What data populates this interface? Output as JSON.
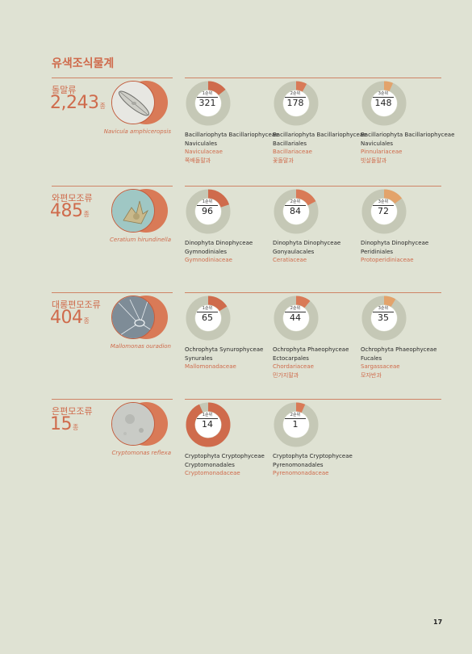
{
  "page_title": "유색조식물계",
  "page_number": "17",
  "colors": {
    "accent": "#cf6b4c",
    "donut_track": "#c5c8b6",
    "rank_fill": [
      "#cf6b4c",
      "#d97a57",
      "#e3a36b"
    ]
  },
  "groups": [
    {
      "name": "돌말류",
      "count": "2,243",
      "unit": "종",
      "species": "Navicula amphiceropsis",
      "specimen_icon": "diatom-icon",
      "ranks": [
        {
          "label": "1순위",
          "count": "321",
          "share": 0.143,
          "taxa": [
            "Bacillariophyta Bacillariophyceae",
            "Naviculales"
          ],
          "family": "Naviculaceae",
          "korean": "쪽배돌말과"
        },
        {
          "label": "2순위",
          "count": "178",
          "share": 0.079,
          "taxa": [
            "Bacillariophyta Bacillariophyceae",
            "Bacillariales"
          ],
          "family": "Bacillariaceae",
          "korean": "꽃돌말과"
        },
        {
          "label": "3순위",
          "count": "148",
          "share": 0.066,
          "taxa": [
            "Bacillariophyta Bacillariophyceae",
            "Naviculales"
          ],
          "family": "Pinnulariaceae",
          "korean": "빗살돌말과"
        }
      ]
    },
    {
      "name": "와편모조류",
      "count": "485",
      "unit": "종",
      "species": "Ceratium hirundinella",
      "specimen_icon": "dinoflagellate-icon",
      "ranks": [
        {
          "label": "1순위",
          "count": "96",
          "share": 0.198,
          "taxa": [
            "Dinophyta Dinophyceae",
            "Gymnodiniales"
          ],
          "family": "Gymnodiniaceae",
          "korean": ""
        },
        {
          "label": "2순위",
          "count": "84",
          "share": 0.173,
          "taxa": [
            "Dinophyta Dinophyceae",
            "Gonyaulacales"
          ],
          "family": "Ceratiaceae",
          "korean": ""
        },
        {
          "label": "3순위",
          "count": "72",
          "share": 0.148,
          "taxa": [
            "Dinophyta Dinophyceae",
            "Peridiniales"
          ],
          "family": "Protoperidiniaceae",
          "korean": ""
        }
      ]
    },
    {
      "name": "대롱편모조류",
      "count": "404",
      "unit": "종",
      "species": "Mallomonas ouradion",
      "specimen_icon": "mallomonas-icon",
      "ranks": [
        {
          "label": "1순위",
          "count": "65",
          "share": 0.161,
          "taxa": [
            "Ochrophyta Synurophyceae",
            "Synurales"
          ],
          "family": "Mallomonadaceae",
          "korean": ""
        },
        {
          "label": "2순위",
          "count": "44",
          "share": 0.109,
          "taxa": [
            "Ochrophyta Phaeophyceae",
            "Ectocarpales"
          ],
          "family": "Chordariaceae",
          "korean": "민가지말과"
        },
        {
          "label": "3순위",
          "count": "35",
          "share": 0.087,
          "taxa": [
            "Ochrophyta Phaeophyceae",
            "Fucales"
          ],
          "family": "Sargassaceae",
          "korean": "모자반과"
        }
      ]
    },
    {
      "name": "은편모조류",
      "count": "15",
      "unit": "종",
      "species": "Cryptomonas reflexa",
      "specimen_icon": "cryptomonas-icon",
      "ranks": [
        {
          "label": "1순위",
          "count": "14",
          "share": 0.933,
          "taxa": [
            "Cryptophyta Cryptophyceae",
            "Cryptomonadales"
          ],
          "family": "Cryptomonadaceae",
          "korean": ""
        },
        {
          "label": "2순위",
          "count": "1",
          "share": 0.067,
          "taxa": [
            "Cryptophyta Cryptophyceae",
            "Pyrenomonadales"
          ],
          "family": "Pyrenomonadaceae",
          "korean": ""
        }
      ]
    }
  ]
}
